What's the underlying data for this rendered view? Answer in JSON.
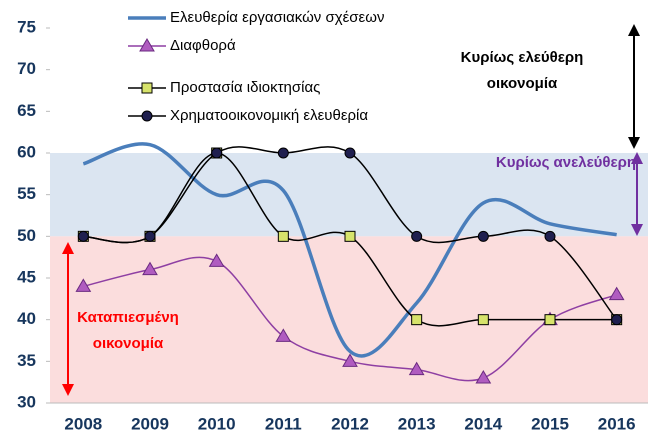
{
  "chart_data": {
    "type": "line",
    "categories": [
      "2008",
      "2009",
      "2010",
      "2011",
      "2012",
      "2013",
      "2014",
      "2015",
      "2016"
    ],
    "series": [
      {
        "name": "Ελευθερία εργασιακών σχέσεων",
        "color": "#4a7ebb",
        "marker": "none",
        "smooth": true,
        "values": [
          58.7,
          61,
          55,
          55.5,
          36.2,
          42,
          54,
          51.5,
          50.2
        ]
      },
      {
        "name": "Διαφθορά",
        "color": "#8e3fa3",
        "marker": "triangle",
        "smooth": true,
        "values": [
          44,
          46,
          47,
          38,
          35,
          34,
          33,
          40,
          43
        ]
      },
      {
        "name": "Προστασία ιδιοκτησίας",
        "color": "#000000",
        "marker": "square",
        "smooth": true,
        "values": [
          50,
          50,
          60,
          50,
          50,
          40,
          40,
          40,
          40
        ]
      },
      {
        "name": "Χρηματοοικονομική ελευθερία",
        "color": "#000000",
        "marker": "circle",
        "smooth": true,
        "values": [
          50,
          50,
          60,
          60,
          60,
          50,
          50,
          50,
          40
        ]
      }
    ],
    "ylim": [
      30,
      75
    ],
    "yticks": [
      30,
      35,
      40,
      45,
      50,
      55,
      60,
      65,
      70,
      75
    ],
    "bands": [
      {
        "from": 50,
        "to": 60,
        "color": "#dbe5f1"
      },
      {
        "from": 30,
        "to": 50,
        "color": "#fbdddd"
      }
    ],
    "annotations": [
      {
        "lines": [
          "Κυρίως ελεύθερη",
          "οικονομία"
        ],
        "color": "#000000"
      },
      {
        "lines": [
          "Κυρίως ανελεύθερη"
        ],
        "color": "#7030a0"
      },
      {
        "lines": [
          "Καταπιεσμένη",
          "οικονομία"
        ],
        "color": "#ff0000"
      }
    ]
  }
}
